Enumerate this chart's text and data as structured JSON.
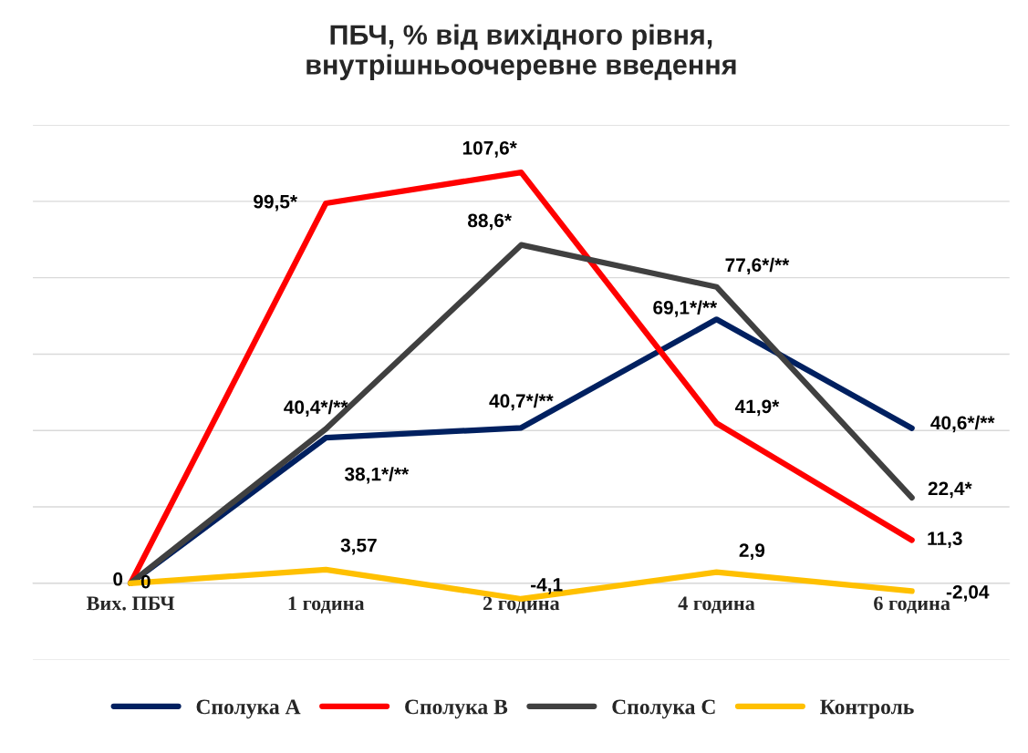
{
  "chart_data": {
    "type": "line",
    "title": "ПБЧ, % від вихідного рівня,\nвнутрішньоочеревне введення",
    "categories": [
      "Вих. ПБЧ",
      "1 година",
      "2 година",
      "4 година",
      "6 година"
    ],
    "series": [
      {
        "name": "Сполука А",
        "color": "#002060",
        "values": [
          0,
          38.1,
          40.7,
          69.1,
          40.6
        ],
        "value_labels": [
          "0",
          "38,1*/**",
          "40,7*/**",
          "69,1*/**",
          "40,6*/**"
        ]
      },
      {
        "name": "Сполука В",
        "color": "#ff0000",
        "values": [
          0,
          99.5,
          107.6,
          41.9,
          11.3
        ],
        "value_labels": [
          null,
          "99,5*",
          "107,6*",
          "41,9*",
          "11,3"
        ]
      },
      {
        "name": "Сполука С",
        "color": "#404040",
        "values": [
          0,
          40.4,
          88.6,
          77.6,
          22.4
        ],
        "value_labels": [
          null,
          "40,4*/**",
          "88,6*",
          "77,6*/**",
          "22,4*"
        ]
      },
      {
        "name": "Контроль",
        "color": "#ffc000",
        "values": [
          0,
          3.57,
          -4.1,
          2.9,
          -2.04
        ],
        "value_labels": [
          "0",
          "3,57",
          "-4,1",
          "2,9",
          "-2,04"
        ]
      }
    ],
    "ylim": [
      -20,
      120
    ],
    "yticks": [
      {
        "value": -20,
        "label": null
      },
      {
        "value": 0,
        "label": null
      },
      {
        "value": 20,
        "label": null
      },
      {
        "value": 40,
        "label": null
      },
      {
        "value": 60,
        "label": null
      },
      {
        "value": 80,
        "label": null
      },
      {
        "value": 100,
        "label": null
      },
      {
        "value": 120,
        "label": null
      }
    ],
    "grid": "y",
    "legend": "bottom",
    "tick_labels": "x",
    "marker": "none",
    "line_style": "solid"
  }
}
